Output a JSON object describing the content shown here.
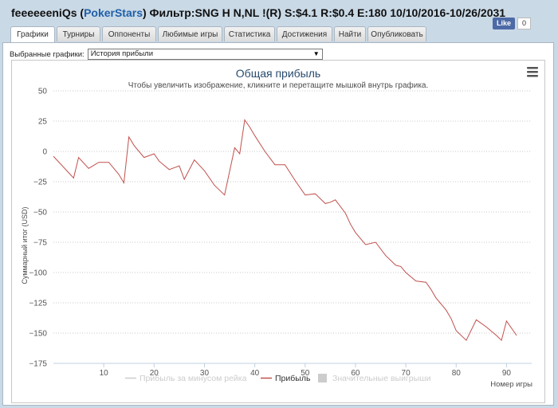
{
  "window": {
    "title_prefix": "feeeeeeniQs (",
    "site": "PokerStars",
    "title_suffix": ") Фильтр:SNG H N,NL !(R) S:$4.1 R:$0.4 E:180 10/10/2016-10/26/2031"
  },
  "like": {
    "label": "Like",
    "count": "0"
  },
  "tabs": [
    {
      "label": "Графики",
      "active": true
    },
    {
      "label": "Турниры"
    },
    {
      "label": "Оппоненты"
    },
    {
      "label": "Любимые игры"
    },
    {
      "label": "Статистика"
    },
    {
      "label": "Достижения"
    },
    {
      "label": "Найти"
    },
    {
      "label": "Опубликовать"
    }
  ],
  "graph_select": {
    "label": "Выбранные графики:",
    "value": "История прибыли"
  },
  "menu_icon": "hamburger-menu-icon",
  "chart_data": {
    "type": "line",
    "title": "Общая прибыль",
    "subtitle": "Чтобы увеличить изображение, кликните и перетащите мышкой внутрь графика.",
    "xlabel": "Номер игры",
    "ylabel": "Суммарный итог (USD)",
    "xlim": [
      0,
      95
    ],
    "ylim": [
      -175,
      50
    ],
    "x_ticks": [
      10,
      20,
      30,
      40,
      50,
      60,
      70,
      80,
      90
    ],
    "y_ticks": [
      50,
      25,
      0,
      -25,
      -50,
      -75,
      -100,
      -125,
      -150,
      -175
    ],
    "y_tick_labels": [
      "50",
      "25",
      "0",
      "−25",
      "−50",
      "−75",
      "−100",
      "−125",
      "−150",
      "−175"
    ],
    "grid": true,
    "legend_position": "bottom-center",
    "legend": [
      {
        "name": "Прибыль за минусом рейка",
        "color": "#d3d3d3",
        "enabled": false,
        "symbol": "line"
      },
      {
        "name": "Прибыль",
        "color": "#c0504d",
        "enabled": true,
        "symbol": "line"
      },
      {
        "name": "Значительные выигрыши",
        "color": "#cccccc",
        "enabled": false,
        "symbol": "square"
      }
    ],
    "series": [
      {
        "name": "Прибыль",
        "color": "#c0504d",
        "x": [
          0,
          4,
          5,
          7,
          9,
          11,
          13,
          14,
          15,
          16,
          18,
          20,
          21,
          23,
          25,
          26,
          28,
          30,
          32,
          34,
          36,
          37,
          38,
          39,
          40,
          42,
          44,
          46,
          48,
          49,
          50,
          52,
          54,
          55,
          56,
          58,
          59,
          60,
          62,
          64,
          66,
          68,
          69,
          70,
          72,
          74,
          75,
          76,
          78,
          79,
          80,
          82,
          84,
          86,
          88,
          89,
          90,
          92
        ],
        "y": [
          -4,
          -22,
          -5,
          -14,
          -9,
          -9,
          -19,
          -26,
          12,
          5,
          -5,
          -2,
          -8,
          -15,
          -12,
          -23,
          -7,
          -16,
          -28,
          -36,
          3,
          -2,
          26,
          20,
          13,
          0,
          -11,
          -11,
          -24,
          -30,
          -36,
          -35,
          -43,
          -42,
          -40,
          -51,
          -60,
          -67,
          -77,
          -75,
          -86,
          -94,
          -95,
          -100,
          -107,
          -108,
          -114,
          -121,
          -131,
          -138,
          -148,
          -156,
          -139,
          -145,
          -152,
          -156,
          -140,
          -152
        ]
      }
    ]
  }
}
